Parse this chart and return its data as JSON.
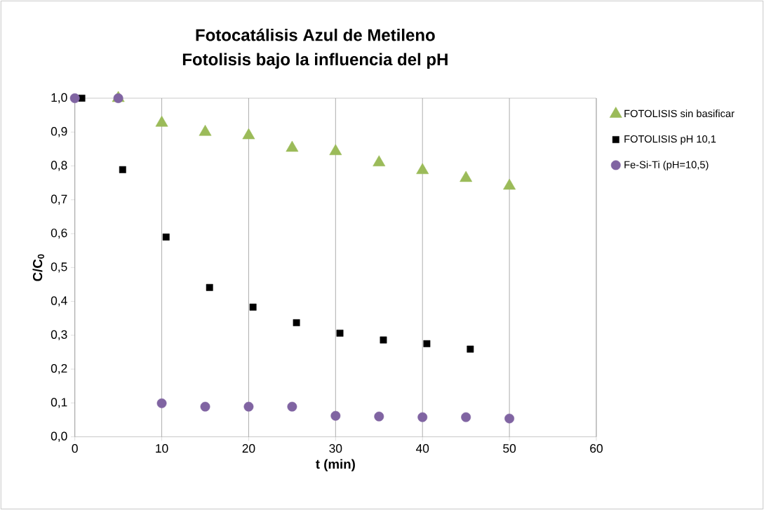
{
  "chart_data": {
    "type": "scatter",
    "title": "Fotocatálisis Azul de Metileno\nFotolisis bajo la influencia del pH",
    "xlabel": "t (min)",
    "ylabel": "C/C$_{0}$",
    "series": [
      {
        "name": "FOTOLISIS sin basificar",
        "color": "#9bbb59",
        "marker": "triangle",
        "x": [
          5,
          10,
          15,
          20,
          25,
          30,
          35,
          40,
          45,
          50
        ],
        "values": [
          1.0,
          0.927,
          0.9,
          0.89,
          0.853,
          0.843,
          0.81,
          0.787,
          0.764,
          0.741
        ]
      },
      {
        "name": "FOTOLISIS pH 10,1",
        "color": "#000000",
        "marker": "square",
        "x": [
          0.8,
          5.5,
          10.5,
          15.5,
          20.5,
          25.5,
          30.5,
          35.5,
          40.5,
          45.5
        ],
        "values": [
          1.0,
          0.789,
          0.59,
          0.441,
          0.383,
          0.337,
          0.306,
          0.286,
          0.275,
          0.259
        ]
      },
      {
        "name": "Fe-Si-Ti (pH=10,5)",
        "color": "#8064a2",
        "marker": "circle",
        "x": [
          0,
          5,
          10,
          15,
          20,
          25,
          30,
          35,
          40,
          45,
          50
        ],
        "values": [
          1.0,
          1.0,
          0.099,
          0.089,
          0.089,
          0.089,
          0.062,
          0.06,
          0.058,
          0.058,
          0.054
        ]
      }
    ],
    "xlim": [
      0,
      60
    ],
    "xticks": [
      0,
      10,
      20,
      30,
      40,
      50,
      60
    ],
    "ylim": [
      0,
      1.0
    ],
    "yticks": [
      {
        "value": 0,
        "label": "0,0"
      },
      {
        "value": 0.1,
        "label": "0,1"
      },
      {
        "value": 0.2,
        "label": "0,2"
      },
      {
        "value": 0.3,
        "label": "0,3"
      },
      {
        "value": 0.4,
        "label": "0,4"
      },
      {
        "value": 0.5,
        "label": "0,5"
      },
      {
        "value": 0.6,
        "label": "0,6"
      },
      {
        "value": 0.7,
        "label": "0,7"
      },
      {
        "value": 0.8,
        "label": "0,8"
      },
      {
        "value": 0.9,
        "label": "0,9"
      },
      {
        "value": 1.0,
        "label": "1,0"
      }
    ],
    "grid": "x",
    "legend": "right"
  }
}
